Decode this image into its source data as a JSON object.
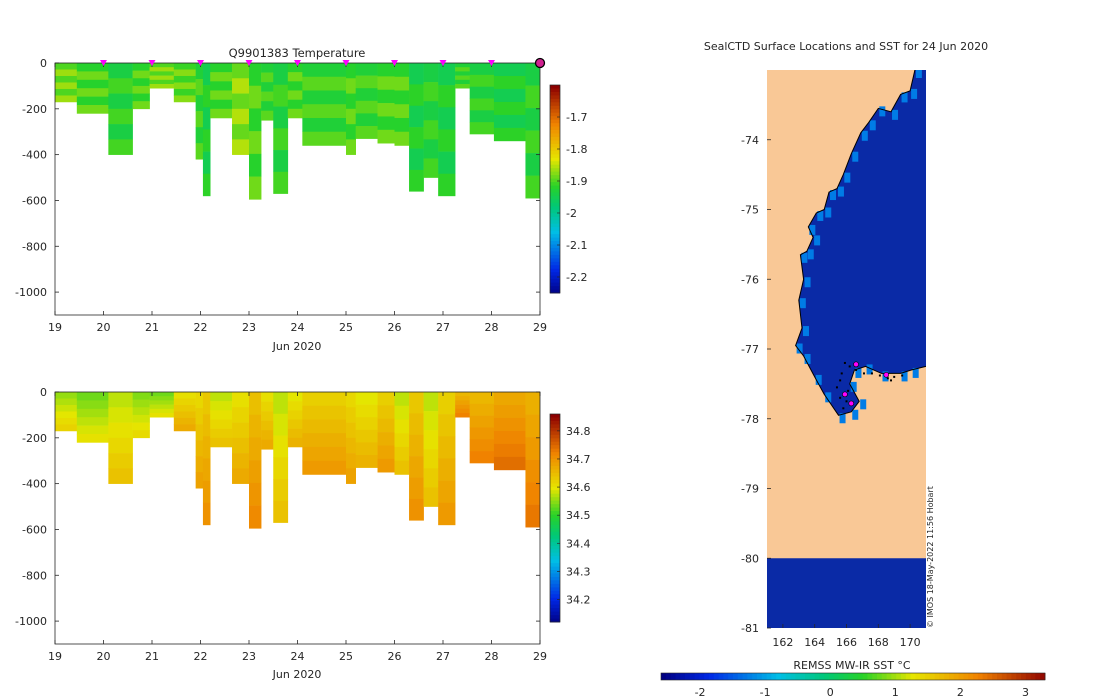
{
  "chart_data": [
    {
      "type": "heatmap",
      "title": "Q9901383  Temperature",
      "xlabel": "Jun 2020",
      "ylabel": "",
      "x_ticks": [
        19,
        20,
        21,
        22,
        23,
        24,
        25,
        26,
        27,
        28,
        29
      ],
      "xlim": [
        19,
        29
      ],
      "y_ticks": [
        0,
        -200,
        -400,
        -600,
        -800,
        -1000
      ],
      "ylim": [
        -1100,
        0
      ],
      "colorbar": {
        "ticks": [
          -1.7,
          -1.8,
          -1.9,
          -2,
          -2.1,
          -2.2
        ],
        "range": [
          -2.25,
          -1.6
        ]
      },
      "profile_markers_day": [
        20,
        21,
        22,
        23,
        24,
        25,
        26,
        27,
        28
      ],
      "last_position_day": 29,
      "profiles": [
        {
          "x0": 19.0,
          "x1": 19.45,
          "depth": 170,
          "value": -1.88
        },
        {
          "x0": 19.45,
          "x1": 20.1,
          "depth": 220,
          "value": -1.9
        },
        {
          "x0": 20.1,
          "x1": 20.6,
          "depth": 400,
          "value": -1.92
        },
        {
          "x0": 20.6,
          "x1": 20.95,
          "depth": 200,
          "value": -1.9
        },
        {
          "x0": 20.95,
          "x1": 21.45,
          "depth": 110,
          "value": -1.88
        },
        {
          "x0": 21.45,
          "x1": 21.9,
          "depth": 170,
          "value": -1.89
        },
        {
          "x0": 21.9,
          "x1": 22.05,
          "depth": 420,
          "value": -1.91
        },
        {
          "x0": 22.05,
          "x1": 22.2,
          "depth": 580,
          "value": -1.93
        },
        {
          "x0": 22.2,
          "x1": 22.65,
          "depth": 240,
          "value": -1.9
        },
        {
          "x0": 22.65,
          "x1": 23.0,
          "depth": 400,
          "value": -1.87
        },
        {
          "x0": 23.0,
          "x1": 23.25,
          "depth": 595,
          "value": -1.9
        },
        {
          "x0": 23.25,
          "x1": 23.5,
          "depth": 250,
          "value": -1.91
        },
        {
          "x0": 23.5,
          "x1": 23.8,
          "depth": 570,
          "value": -1.92
        },
        {
          "x0": 23.8,
          "x1": 24.1,
          "depth": 240,
          "value": -1.9
        },
        {
          "x0": 24.1,
          "x1": 25.0,
          "depth": 360,
          "value": -1.91
        },
        {
          "x0": 25.0,
          "x1": 25.2,
          "depth": 400,
          "value": -1.9
        },
        {
          "x0": 25.2,
          "x1": 25.65,
          "depth": 330,
          "value": -1.91
        },
        {
          "x0": 25.65,
          "x1": 26.0,
          "depth": 350,
          "value": -1.9
        },
        {
          "x0": 26.0,
          "x1": 26.3,
          "depth": 360,
          "value": -1.9
        },
        {
          "x0": 26.3,
          "x1": 26.6,
          "depth": 560,
          "value": -1.93
        },
        {
          "x0": 26.6,
          "x1": 26.9,
          "depth": 500,
          "value": -1.92
        },
        {
          "x0": 26.9,
          "x1": 27.25,
          "depth": 580,
          "value": -1.93
        },
        {
          "x0": 27.25,
          "x1": 27.55,
          "depth": 110,
          "value": -1.91
        },
        {
          "x0": 27.55,
          "x1": 28.05,
          "depth": 310,
          "value": -1.92
        },
        {
          "x0": 28.05,
          "x1": 28.7,
          "depth": 340,
          "value": -1.93
        },
        {
          "x0": 28.7,
          "x1": 29.05,
          "depth": 590,
          "value": -1.92
        }
      ]
    },
    {
      "type": "heatmap",
      "title": "",
      "xlabel": "Jun 2020",
      "ylabel": "",
      "x_ticks": [
        19,
        20,
        21,
        22,
        23,
        24,
        25,
        26,
        27,
        28,
        29
      ],
      "xlim": [
        19,
        29
      ],
      "y_ticks": [
        0,
        -200,
        -400,
        -600,
        -800,
        -1000
      ],
      "ylim": [
        -1100,
        0
      ],
      "colorbar": {
        "ticks": [
          34.8,
          34.7,
          34.6,
          34.5,
          34.4,
          34.3,
          34.2
        ],
        "range": [
          34.12,
          34.86
        ]
      },
      "profiles": [
        {
          "x0": 19.0,
          "x1": 19.45,
          "depth": 170,
          "value": 34.58
        },
        {
          "x0": 19.45,
          "x1": 20.1,
          "depth": 220,
          "value": 34.56
        },
        {
          "x0": 20.1,
          "x1": 20.6,
          "depth": 400,
          "value": 34.6
        },
        {
          "x0": 20.6,
          "x1": 20.95,
          "depth": 200,
          "value": 34.57
        },
        {
          "x0": 20.95,
          "x1": 21.45,
          "depth": 110,
          "value": 34.56
        },
        {
          "x0": 21.45,
          "x1": 21.9,
          "depth": 170,
          "value": 34.63
        },
        {
          "x0": 21.9,
          "x1": 22.05,
          "depth": 420,
          "value": 34.64
        },
        {
          "x0": 22.05,
          "x1": 22.2,
          "depth": 580,
          "value": 34.66
        },
        {
          "x0": 22.2,
          "x1": 22.65,
          "depth": 240,
          "value": 34.6
        },
        {
          "x0": 22.65,
          "x1": 23.0,
          "depth": 400,
          "value": 34.63
        },
        {
          "x0": 23.0,
          "x1": 23.25,
          "depth": 595,
          "value": 34.67
        },
        {
          "x0": 23.25,
          "x1": 23.5,
          "depth": 250,
          "value": 34.63
        },
        {
          "x0": 23.5,
          "x1": 23.8,
          "depth": 570,
          "value": 34.6
        },
        {
          "x0": 23.8,
          "x1": 24.1,
          "depth": 240,
          "value": 34.62
        },
        {
          "x0": 24.1,
          "x1": 25.0,
          "depth": 360,
          "value": 34.65
        },
        {
          "x0": 25.0,
          "x1": 25.2,
          "depth": 400,
          "value": 34.64
        },
        {
          "x0": 25.2,
          "x1": 25.65,
          "depth": 330,
          "value": 34.62
        },
        {
          "x0": 25.65,
          "x1": 26.0,
          "depth": 350,
          "value": 34.65
        },
        {
          "x0": 26.0,
          "x1": 26.3,
          "depth": 360,
          "value": 34.6
        },
        {
          "x0": 26.3,
          "x1": 26.6,
          "depth": 560,
          "value": 34.66
        },
        {
          "x0": 26.6,
          "x1": 26.9,
          "depth": 500,
          "value": 34.6
        },
        {
          "x0": 26.9,
          "x1": 27.25,
          "depth": 580,
          "value": 34.65
        },
        {
          "x0": 27.25,
          "x1": 27.55,
          "depth": 110,
          "value": 34.68
        },
        {
          "x0": 27.55,
          "x1": 28.05,
          "depth": 310,
          "value": 34.68
        },
        {
          "x0": 28.05,
          "x1": 28.7,
          "depth": 340,
          "value": 34.7
        },
        {
          "x0": 28.7,
          "x1": 29.05,
          "depth": 590,
          "value": 34.69
        }
      ]
    },
    {
      "type": "heatmap",
      "title": "SealCTD Surface Locations and SST for 24 Jun 2020",
      "xlabel": "",
      "ylabel": "",
      "x_ticks": [
        162,
        164,
        166,
        168,
        170
      ],
      "xlim": [
        161,
        171
      ],
      "y_ticks": [
        -74,
        -75,
        -76,
        -77,
        -78,
        -79,
        -80,
        -81
      ],
      "ylim": [
        -81,
        -73
      ],
      "colorbar": {
        "label": "REMSS MW-IR SST °C",
        "ticks": [
          -2,
          -1,
          0,
          1,
          2,
          3
        ],
        "range": [
          -2.6,
          3.3
        ]
      },
      "ocean_sst": -1.8,
      "watermark": "© IMOS 18-May-2022 11:56 Hobart",
      "coastline": [
        [
          170.3,
          -73
        ],
        [
          170.0,
          -73.3
        ],
        [
          169.4,
          -73.35
        ],
        [
          168.8,
          -73.6
        ],
        [
          168.0,
          -73.55
        ],
        [
          167.4,
          -73.75
        ],
        [
          166.9,
          -73.9
        ],
        [
          166.3,
          -74.2
        ],
        [
          165.8,
          -74.5
        ],
        [
          165.4,
          -74.7
        ],
        [
          164.9,
          -74.75
        ],
        [
          164.6,
          -75.0
        ],
        [
          164.1,
          -75.05
        ],
        [
          163.6,
          -75.25
        ],
        [
          163.9,
          -75.4
        ],
        [
          163.5,
          -75.6
        ],
        [
          163.1,
          -75.65
        ],
        [
          163.3,
          -76.0
        ],
        [
          163.0,
          -76.3
        ],
        [
          163.2,
          -76.7
        ],
        [
          162.8,
          -76.95
        ],
        [
          163.3,
          -77.1
        ],
        [
          164.0,
          -77.4
        ],
        [
          164.6,
          -77.65
        ],
        [
          165.5,
          -77.95
        ],
        [
          166.3,
          -77.9
        ],
        [
          166.8,
          -77.75
        ],
        [
          166.2,
          -77.5
        ],
        [
          166.5,
          -77.3
        ],
        [
          167.2,
          -77.25
        ],
        [
          168.2,
          -77.35
        ],
        [
          169.4,
          -77.35
        ],
        [
          170.1,
          -77.3
        ],
        [
          171,
          -77.25
        ]
      ],
      "seal_track": [
        [
          166.2,
          -77.25
        ],
        [
          166.6,
          -77.3
        ],
        [
          167.1,
          -77.35
        ],
        [
          167.6,
          -77.35
        ],
        [
          168.1,
          -77.38
        ],
        [
          168.6,
          -77.42
        ],
        [
          169.0,
          -77.4
        ],
        [
          169.5,
          -77.38
        ],
        [
          168.8,
          -77.45
        ],
        [
          165.6,
          -77.45
        ],
        [
          165.4,
          -77.55
        ],
        [
          165.6,
          -77.7
        ],
        [
          166.0,
          -77.75
        ],
        [
          166.3,
          -77.8
        ],
        [
          165.8,
          -77.85
        ],
        [
          166.1,
          -77.6
        ],
        [
          165.7,
          -77.35
        ],
        [
          165.9,
          -77.2
        ]
      ],
      "seal_markers": [
        [
          166.6,
          -77.22
        ],
        [
          168.5,
          -77.37
        ],
        [
          165.9,
          -77.65
        ],
        [
          166.3,
          -77.78
        ]
      ]
    }
  ]
}
